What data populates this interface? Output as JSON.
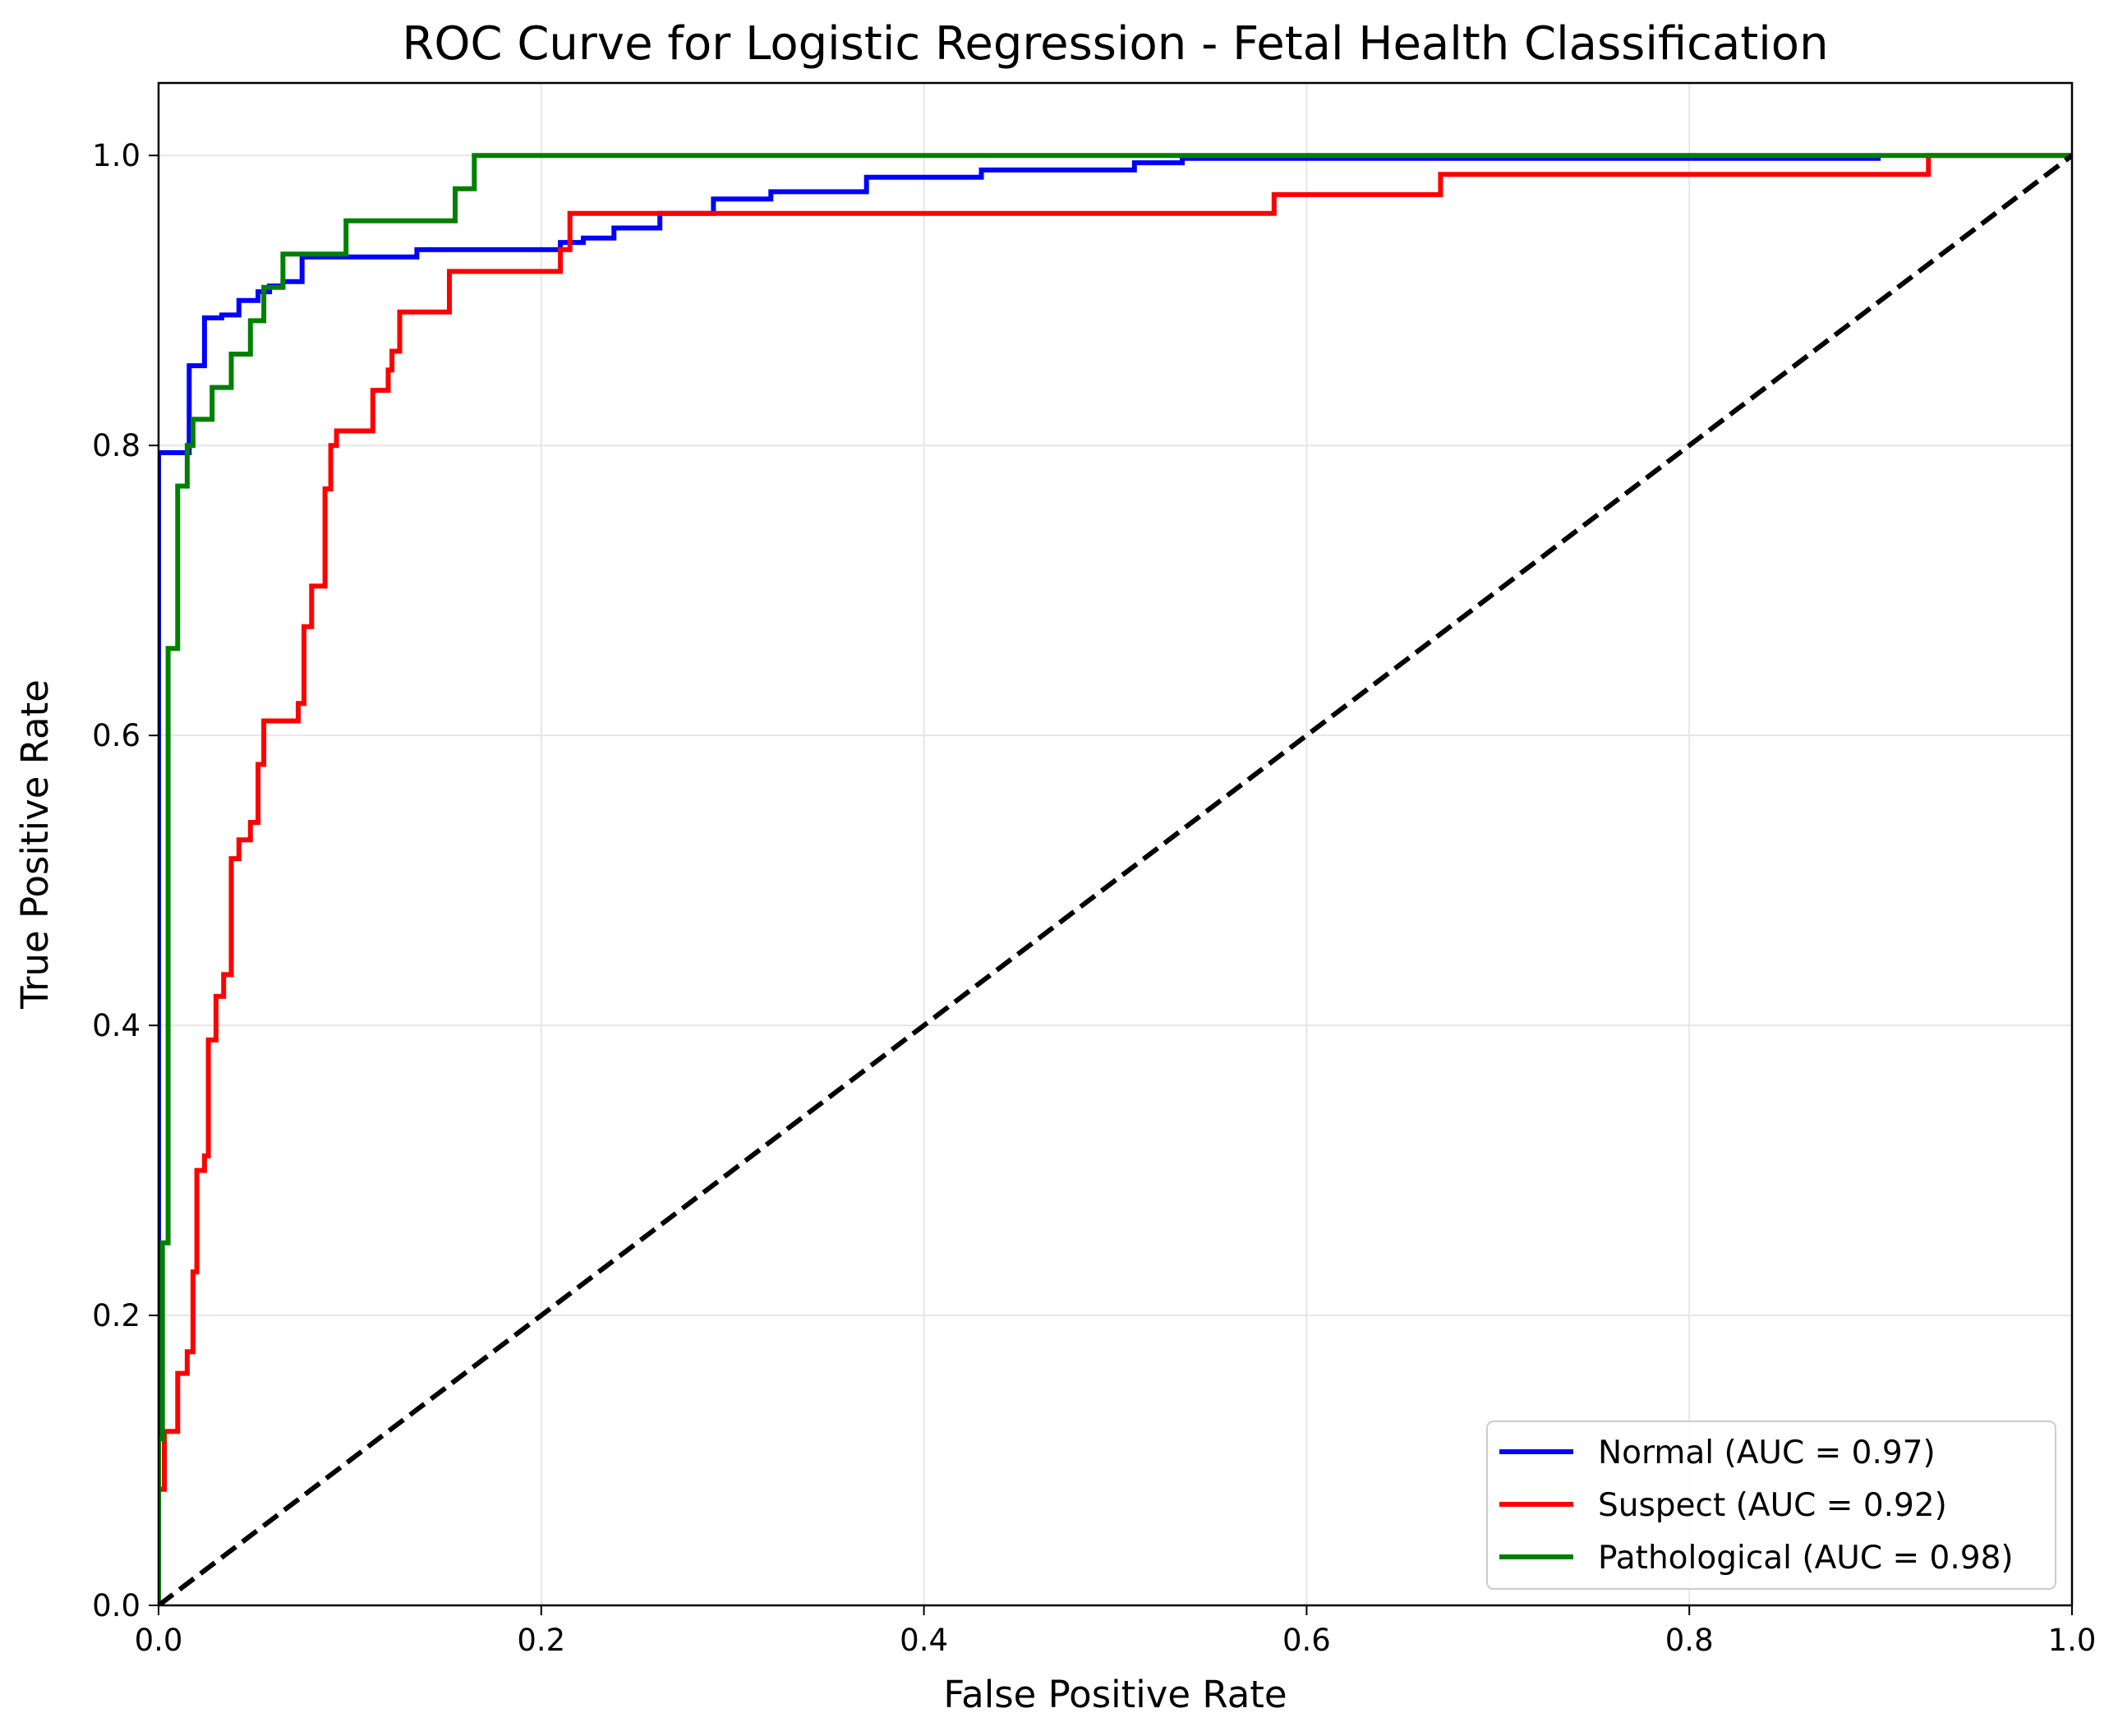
{
  "chart_data": {
    "type": "line",
    "title": "ROC Curve for Logistic Regression - Fetal Health Classification",
    "xlabel": "False Positive Rate",
    "ylabel": "True Positive Rate",
    "xlim": [
      0.0,
      1.0
    ],
    "ylim": [
      0.0,
      1.05
    ],
    "xticks": [
      "0.0",
      "0.2",
      "0.4",
      "0.6",
      "0.8",
      "1.0"
    ],
    "yticks": [
      "0.0",
      "0.2",
      "0.4",
      "0.6",
      "0.8",
      "1.0"
    ],
    "grid": true,
    "legend_position": "bottom-right",
    "series": [
      {
        "name": "Normal (AUC = 0.97)",
        "color": "#0000ff",
        "x": [
          0,
          0,
          0,
          0,
          0.016,
          0.016,
          0.024,
          0.024,
          0.033,
          0.033,
          0.042,
          0.042,
          0.052,
          0.052,
          0.058,
          0.058,
          0.065,
          0.065,
          0.075,
          0.075,
          0.135,
          0.135,
          0.21,
          0.21,
          0.222,
          0.222,
          0.238,
          0.238,
          0.262,
          0.262,
          0.29,
          0.29,
          0.32,
          0.32,
          0.37,
          0.37,
          0.43,
          0.43,
          0.51,
          0.51,
          0.535,
          0.535,
          0.9
        ],
        "y": [
          0,
          0.25,
          0.66,
          0.795,
          0.795,
          0.855,
          0.855,
          0.888,
          0.888,
          0.89,
          0.89,
          0.9,
          0.9,
          0.906,
          0.906,
          0.91,
          0.91,
          0.913,
          0.913,
          0.93,
          0.93,
          0.935,
          0.935,
          0.94,
          0.94,
          0.943,
          0.943,
          0.95,
          0.95,
          0.96,
          0.96,
          0.97,
          0.97,
          0.975,
          0.975,
          0.985,
          0.985,
          0.99,
          0.99,
          0.995,
          0.995,
          0.998,
          0.998
        ]
      },
      {
        "name": "Suspect (AUC = 0.92)",
        "color": "#ff0000",
        "x": [
          0,
          0,
          0.003,
          0.003,
          0.01,
          0.01,
          0.015,
          0.015,
          0.018,
          0.018,
          0.02,
          0.02,
          0.024,
          0.024,
          0.026,
          0.026,
          0.03,
          0.03,
          0.034,
          0.034,
          0.038,
          0.038,
          0.042,
          0.042,
          0.048,
          0.048,
          0.052,
          0.052,
          0.055,
          0.055,
          0.073,
          0.073,
          0.076,
          0.076,
          0.08,
          0.08,
          0.087,
          0.087,
          0.09,
          0.09,
          0.093,
          0.093,
          0.112,
          0.112,
          0.12,
          0.12,
          0.122,
          0.122,
          0.126,
          0.126,
          0.152,
          0.152,
          0.21,
          0.21,
          0.215,
          0.215,
          0.265,
          0.265,
          0.583,
          0.583,
          0.67,
          0.67,
          0.925,
          0.925,
          1.0
        ],
        "y": [
          0,
          0.08,
          0.08,
          0.12,
          0.12,
          0.16,
          0.16,
          0.175,
          0.175,
          0.23,
          0.23,
          0.3,
          0.3,
          0.31,
          0.31,
          0.39,
          0.39,
          0.42,
          0.42,
          0.435,
          0.435,
          0.515,
          0.515,
          0.528,
          0.528,
          0.54,
          0.54,
          0.58,
          0.58,
          0.61,
          0.61,
          0.622,
          0.622,
          0.675,
          0.675,
          0.703,
          0.703,
          0.77,
          0.77,
          0.8,
          0.8,
          0.81,
          0.81,
          0.838,
          0.838,
          0.852,
          0.852,
          0.865,
          0.865,
          0.892,
          0.892,
          0.92,
          0.92,
          0.935,
          0.935,
          0.96,
          0.96,
          0.96,
          0.96,
          0.973,
          0.973,
          0.987,
          0.987,
          1.0,
          1.0
        ]
      },
      {
        "name": "Pathological (AUC = 0.98)",
        "color": "#008000",
        "x": [
          0,
          0,
          0.002,
          0.002,
          0.005,
          0.005,
          0.01,
          0.01,
          0.015,
          0.015,
          0.018,
          0.018,
          0.028,
          0.028,
          0.038,
          0.038,
          0.048,
          0.048,
          0.055,
          0.055,
          0.065,
          0.065,
          0.098,
          0.098,
          0.155,
          0.155,
          0.165,
          0.165,
          1.0
        ],
        "y": [
          0,
          0.115,
          0.115,
          0.25,
          0.25,
          0.66,
          0.66,
          0.772,
          0.772,
          0.8,
          0.8,
          0.818,
          0.818,
          0.84,
          0.84,
          0.863,
          0.863,
          0.886,
          0.886,
          0.909,
          0.909,
          0.932,
          0.932,
          0.955,
          0.955,
          0.977,
          0.977,
          1.0,
          1.0
        ]
      },
      {
        "name": "",
        "color": "#000000",
        "dashed": true,
        "x": [
          0,
          1
        ],
        "y": [
          0,
          1
        ]
      }
    ]
  }
}
